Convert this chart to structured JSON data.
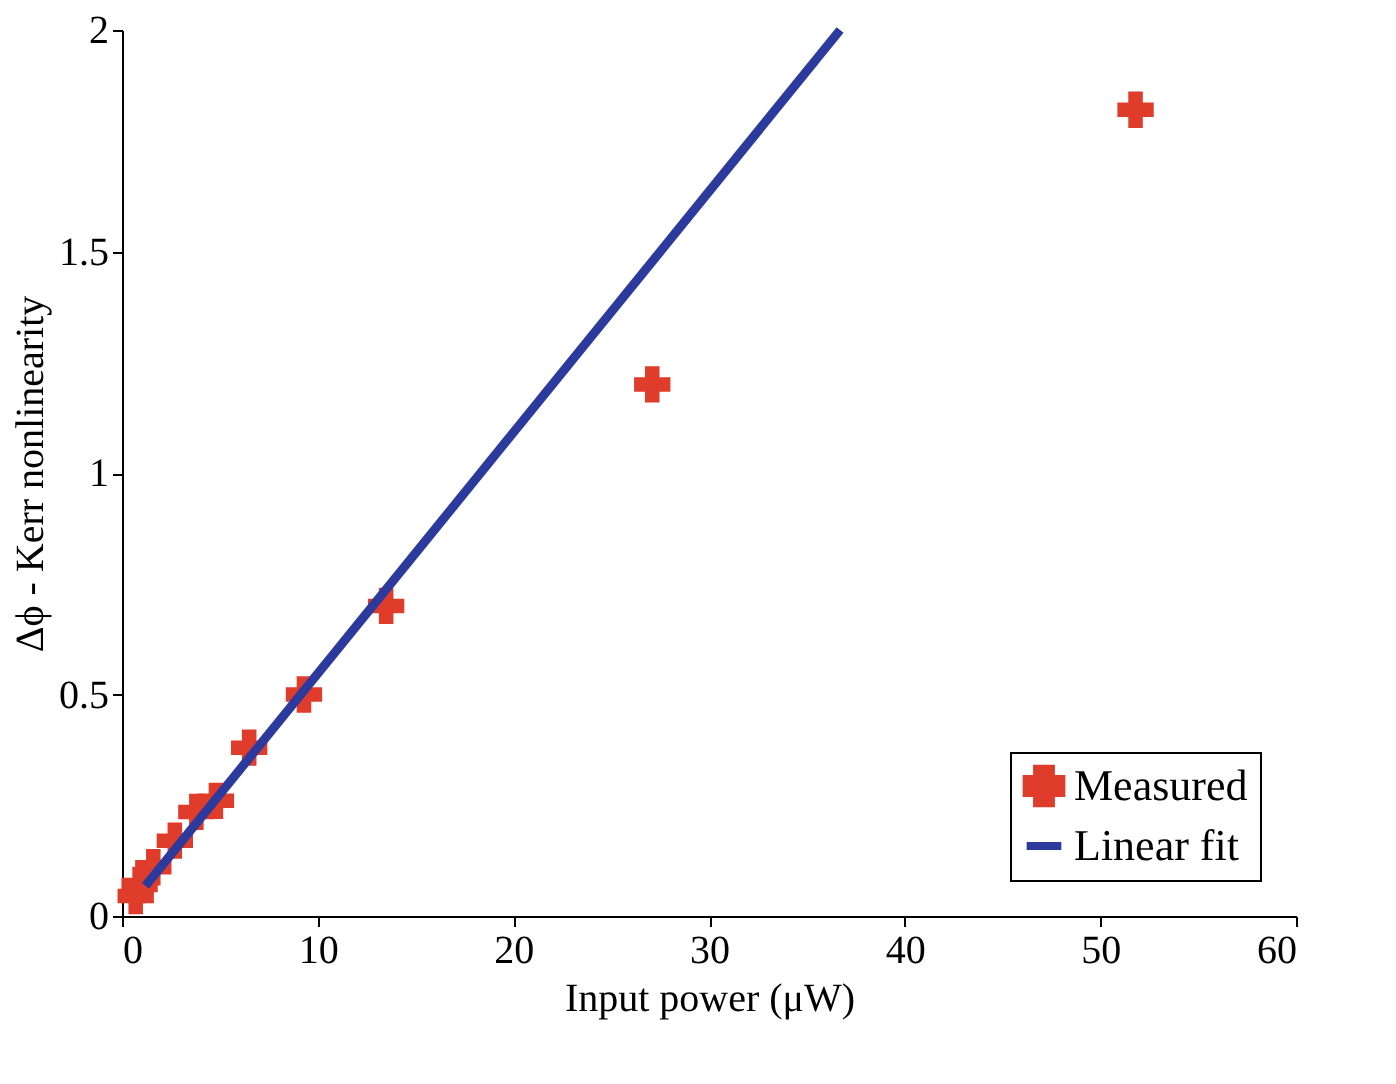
{
  "chart_data": {
    "type": "scatter",
    "xlabel": "Input power (μW)",
    "ylabel": "Δϕ - Kerr nonlinearity",
    "xlim": [
      0,
      60
    ],
    "ylim": [
      0,
      2
    ],
    "xticks": [
      0,
      10,
      20,
      30,
      40,
      50,
      60
    ],
    "yticks": [
      0,
      0.5,
      1,
      1.5,
      2
    ],
    "legend": "bottom right",
    "grid": false,
    "series": [
      {
        "name": "Measured",
        "marker": "cross",
        "color": "#e03c2c",
        "x": [
          0.7,
          0.9,
          1.6,
          2.7,
          3.8,
          4.8,
          6.5,
          9.3,
          13.5,
          27.1,
          51.8
        ],
        "values": [
          0.045,
          0.07,
          0.11,
          0.17,
          0.235,
          0.26,
          0.38,
          0.5,
          0.7,
          1.2,
          1.82
        ]
      },
      {
        "name": "Linear fit",
        "type": "line",
        "marker": "none",
        "color": "#2b3a9c",
        "x": [
          1.2,
          36.7
        ],
        "values": [
          0.068,
          2.0
        ]
      }
    ]
  }
}
